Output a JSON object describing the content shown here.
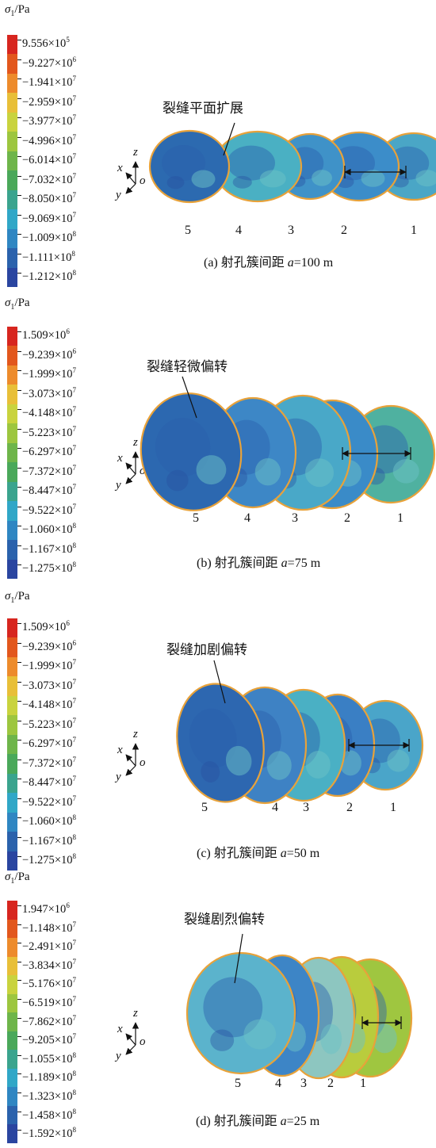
{
  "legend_unit": {
    "symbol": "σ",
    "subscript": "1",
    "unit": "/Pa"
  },
  "legend_colors": [
    "#d7261f",
    "#e2571d",
    "#ed8b2c",
    "#e8bf38",
    "#c9d33e",
    "#9dc63f",
    "#6eb54a",
    "#4aa85a",
    "#3aa48e",
    "#30a7c7",
    "#2f86c2",
    "#2b62ac",
    "#2a45a0"
  ],
  "axes_labels": {
    "x": "x",
    "z": "z",
    "y": "y",
    "o": "o"
  },
  "panels": [
    {
      "legend": [
        {
          "m": "9.556",
          "e": "5"
        },
        {
          "m": "−9.227",
          "e": "6"
        },
        {
          "m": "−1.941",
          "e": "7"
        },
        {
          "m": "−2.959",
          "e": "7"
        },
        {
          "m": "−3.977",
          "e": "7"
        },
        {
          "m": "−4.996",
          "e": "7"
        },
        {
          "m": "−6.014",
          "e": "7"
        },
        {
          "m": "−7.032",
          "e": "7"
        },
        {
          "m": "−8.050",
          "e": "7"
        },
        {
          "m": "−9.069",
          "e": "7"
        },
        {
          "m": "−1.009",
          "e": "8"
        },
        {
          "m": "−1.111",
          "e": "8"
        },
        {
          "m": "−1.212",
          "e": "8"
        }
      ],
      "annotation": "裂缝平面扩展",
      "spacing_label": "100 m",
      "numbers": [
        "5",
        "4",
        "3",
        "2",
        "1"
      ],
      "caption_prefix": "(a) 射孔簇间距 ",
      "caption_var": "a",
      "caption_value": "=100 m"
    },
    {
      "legend": [
        {
          "m": "1.509",
          "e": "6"
        },
        {
          "m": "−9.239",
          "e": "6"
        },
        {
          "m": "−1.999",
          "e": "7"
        },
        {
          "m": "−3.073",
          "e": "7"
        },
        {
          "m": "−4.148",
          "e": "7"
        },
        {
          "m": "−5.223",
          "e": "7"
        },
        {
          "m": "−6.297",
          "e": "7"
        },
        {
          "m": "−7.372",
          "e": "7"
        },
        {
          "m": "−8.447",
          "e": "7"
        },
        {
          "m": "−9.522",
          "e": "7"
        },
        {
          "m": "−1.060",
          "e": "8"
        },
        {
          "m": "−1.167",
          "e": "8"
        },
        {
          "m": "−1.275",
          "e": "8"
        }
      ],
      "annotation": "裂缝轻微偏转",
      "spacing_label": "75 m",
      "numbers": [
        "5",
        "4",
        "3",
        "2",
        "1"
      ],
      "caption_prefix": "(b) 射孔簇间距 ",
      "caption_var": "a",
      "caption_value": "=75 m"
    },
    {
      "legend": [
        {
          "m": "1.509",
          "e": "6"
        },
        {
          "m": "−9.239",
          "e": "6"
        },
        {
          "m": "−1.999",
          "e": "7"
        },
        {
          "m": "−3.073",
          "e": "7"
        },
        {
          "m": "−4.148",
          "e": "7"
        },
        {
          "m": "−5.223",
          "e": "7"
        },
        {
          "m": "−6.297",
          "e": "7"
        },
        {
          "m": "−7.372",
          "e": "7"
        },
        {
          "m": "−8.447",
          "e": "7"
        },
        {
          "m": "−9.522",
          "e": "7"
        },
        {
          "m": "−1.060",
          "e": "8"
        },
        {
          "m": "−1.167",
          "e": "8"
        },
        {
          "m": "−1.275",
          "e": "8"
        }
      ],
      "annotation": "裂缝加剧偏转",
      "spacing_label": "50 m",
      "numbers": [
        "5",
        "4",
        "3",
        "2",
        "1"
      ],
      "caption_prefix": "(c) 射孔簇间距 ",
      "caption_var": "a",
      "caption_value": "=50 m"
    },
    {
      "legend": [
        {
          "m": "1.947",
          "e": "6"
        },
        {
          "m": "−1.148",
          "e": "7"
        },
        {
          "m": "−2.491",
          "e": "7"
        },
        {
          "m": "−3.834",
          "e": "7"
        },
        {
          "m": "−5.176",
          "e": "7"
        },
        {
          "m": "−6.519",
          "e": "7"
        },
        {
          "m": "−7.862",
          "e": "7"
        },
        {
          "m": "−9.205",
          "e": "7"
        },
        {
          "m": "−1.055",
          "e": "8"
        },
        {
          "m": "−1.189",
          "e": "8"
        },
        {
          "m": "−1.323",
          "e": "8"
        },
        {
          "m": "−1.458",
          "e": "8"
        },
        {
          "m": "−1.592",
          "e": "8"
        }
      ],
      "annotation": "裂缝剧烈偏转",
      "spacing_label": "25 m",
      "numbers": [
        "5",
        "4",
        "3",
        "2",
        "1"
      ],
      "caption_prefix": "(d) 射孔簇间距 ",
      "caption_var": "a",
      "caption_value": "=25 m"
    }
  ]
}
